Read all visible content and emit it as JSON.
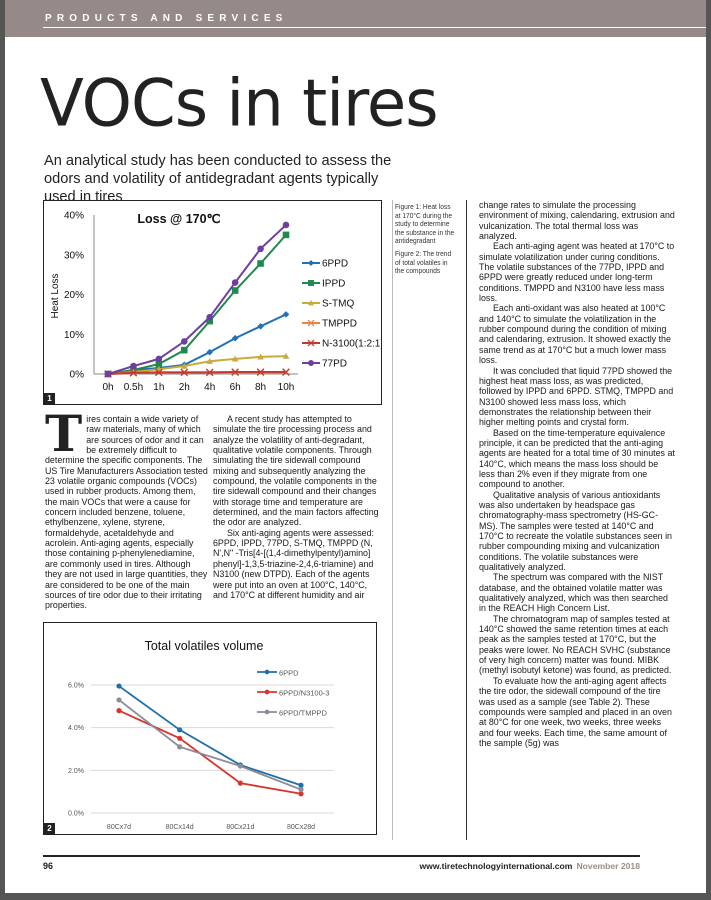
{
  "header": {
    "section": "PRODUCTS AND SERVICES"
  },
  "article": {
    "title": "VOCs in tires",
    "subtitle": "An analytical study has been conducted to assess the odors and volatility of antidegradant agents typically used in tires"
  },
  "captions": [
    "Figure 1: Heat loss at 170°C during the study to determine the substance in the antidegradant",
    "Figure 2: The trend of total volatiles in the compounds"
  ],
  "body": {
    "dropcap": "T",
    "col1": [
      "ires contain a wide variety of raw materials, many of which are sources of odor and it can be extremely difficult to determine the specific components. The US Tire Manufacturers Association tested 23 volatile organic compounds (VOCs) used in rubber products. Among them, the main VOCs that were a cause for concern included benzene, toluene, ethylbenzene, xylene, styrene, formaldehyde, acetaldehyde and acrolein. Anti-aging agents, especially those containing p-phenylenediamine, are commonly used in tires. Although they are not used in large quantities, they are considered to be one of the main sources of tire odor due to their irritating properties."
    ],
    "col2": [
      "A recent study has attempted to simulate the tire processing process and analyze the volatility of anti-degradant, qualitative volatile components. Through simulating the tire sidewall compound mixing and subsequently analyzing the compound, the volatile components in the tire sidewall compound and their changes with storage time and temperature are determined, and the main factors affecting the odor are analyzed.",
      "Six anti-aging agents were assessed: 6PPD, IPPD, 77PD, S-TMQ, TMPPD (N, N',N\" -Tris[4-[(1,4-dimethylpentyl)amino] phenyl]-1,3,5-triazine-2,4,6-triamine) and N3100 (new DTPD). Each of the agents were put into an oven at 100°C, 140°C, and 170°C at different humidity and air"
    ],
    "col3": [
      "change rates to simulate the processing environment of mixing, calendaring, extrusion and vulcanization. The total thermal loss was analyzed.",
      "Each anti-aging agent was heated at 170°C to simulate volatilization under curing conditions. The volatile substances of the 77PD, IPPD and 6PPD were greatly reduced under long-term conditions. TMPPD and N3100 have less mass loss.",
      "Each anti-oxidant was also heated at 100°C and 140°C to simulate the volatilization in the rubber compound during the condition of mixing and calendaring, extrusion. It showed exactly the same trend as at 170°C but a much lower mass loss.",
      "It was concluded that liquid 77PD showed the highest heat mass loss, as was predicted, followed by IPPD and 6PPD. STMQ, TMPPD and N3100 showed less mass loss, which demonstrates the relationship between their higher melting points and crystal form.",
      "Based on the time-temperature equivalence principle, it can be predicted that the anti-aging agents are heated for a total time of 30 minutes at 140°C, which means the mass loss should be less than 2% even if they migrate from one compound to another.",
      "Qualitative analysis of various antioxidants was also undertaken by headspace gas chromatography-mass spectrometry (HS-GC-MS). The samples were tested at 140°C and 170°C to recreate the volatile substances seen in rubber compounding mixing and vulcanization conditions. The volatile substances were qualitatively analyzed.",
      "The spectrum was compared with the NIST database, and the obtained volatile matter was qualitatively analyzed, which was then searched in the REACH High Concern List.",
      "The chromatogram map of samples tested at 140°C showed the same retention times at each peak as the samples tested at 170°C, but the peaks were lower. No REACH SVHC (substance of very high concern) matter was found. MIBK (methyl isobutyl ketone) was found, as predicted.",
      "To evaluate how the anti-aging agent affects the tire odor, the sidewall compound of the tire was used as a sample (see Table 2). These compounds were sampled and placed in an oven at 80°C for one week, two weeks, three weeks and four weeks. Each time, the same amount of the sample (5g) was"
    ]
  },
  "footer": {
    "page_number": "96",
    "url": "www.tiretechnologyinternational.com",
    "date": "November 2018"
  },
  "chart_data": [
    {
      "type": "line",
      "figure_number": "1",
      "title": "Loss @ 170℃",
      "xlabel": "",
      "ylabel": "Heat Loss",
      "categories": [
        "0h",
        "0.5h",
        "1h",
        "2h",
        "4h",
        "6h",
        "8h",
        "10h"
      ],
      "yticks": [
        "0%",
        "10%",
        "20%",
        "30%",
        "40%"
      ],
      "ylim": [
        0,
        40
      ],
      "legend": "right",
      "grid": false,
      "series": [
        {
          "name": "6PPD",
          "color": "#2271b5",
          "marker": "diamond",
          "values": [
            0,
            1.0,
            1.5,
            2.3,
            5.5,
            9.0,
            12.0,
            15.0
          ]
        },
        {
          "name": "IPPD",
          "color": "#1f8a4d",
          "marker": "square",
          "values": [
            0,
            1.0,
            2.5,
            6.0,
            13.3,
            21.0,
            27.8,
            35.0
          ]
        },
        {
          "name": "S-TMQ",
          "color": "#c9aa3a",
          "marker": "triangle",
          "values": [
            0,
            0.5,
            1.2,
            2.0,
            3.2,
            3.8,
            4.3,
            4.5
          ]
        },
        {
          "name": "TMPPD",
          "color": "#e8834a",
          "marker": "x",
          "values": [
            0,
            0.3,
            0.4,
            0.4,
            0.4,
            0.4,
            0.4,
            0.4
          ]
        },
        {
          "name": "N-3100(1:2:1)",
          "color": "#c23a2e",
          "marker": "x",
          "values": [
            0,
            0.3,
            0.4,
            0.4,
            0.4,
            0.5,
            0.5,
            0.5
          ]
        },
        {
          "name": "77PD",
          "color": "#6e3fa0",
          "marker": "circle",
          "values": [
            0,
            2.0,
            3.8,
            8.2,
            14.3,
            23.0,
            31.5,
            37.5
          ]
        }
      ]
    },
    {
      "type": "line",
      "figure_number": "2",
      "title": "Total volatiles volume",
      "categories": [
        "80Cx7d",
        "80Cx14d",
        "80Cx21d",
        "80Cx28d"
      ],
      "yticks": [
        "0.0%",
        "2.0%",
        "4.0%",
        "6.0%"
      ],
      "ylim": [
        0,
        6
      ],
      "legend": "top-right",
      "grid": true,
      "series": [
        {
          "name": "6PPD",
          "color": "#1f6fa8",
          "marker": "circle",
          "values": [
            5.95,
            3.9,
            2.25,
            1.3
          ]
        },
        {
          "name": "6PPD/N3100-3",
          "color": "#d9342b",
          "marker": "circle",
          "values": [
            4.8,
            3.5,
            1.4,
            0.9
          ]
        },
        {
          "name": "6PPD/TMPPD",
          "color": "#8a8c96",
          "marker": "circle",
          "values": [
            5.3,
            3.1,
            2.2,
            1.1
          ]
        }
      ]
    }
  ]
}
